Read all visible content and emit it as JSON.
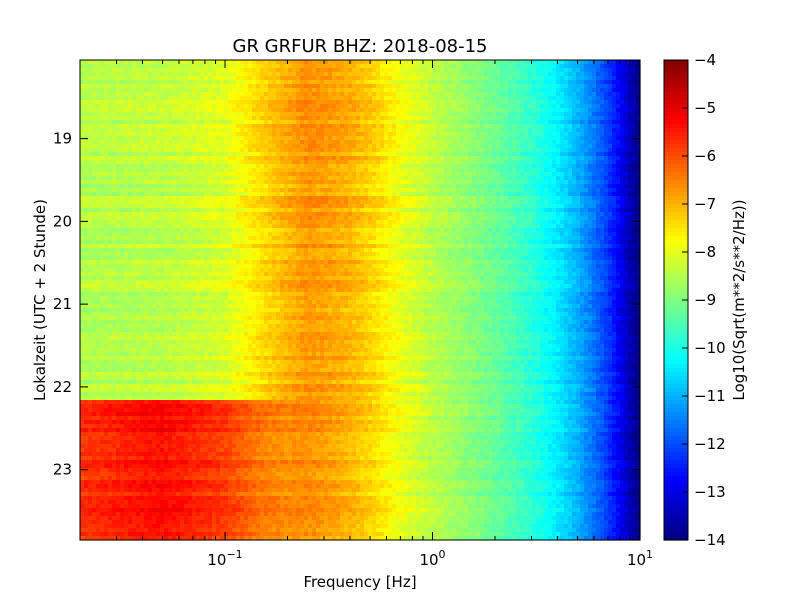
{
  "chart_data": {
    "type": "heatmap",
    "title": "GR GRFUR BHZ: 2018-08-15",
    "xlabel": "Frequency [Hz]",
    "ylabel": "Lokalzeit (UTC + 2 Stunde)",
    "colorbar_label": "Log10(Sqrt(m**2/s**2/Hz))",
    "x_scale": "log",
    "xlim": [
      0.02,
      10
    ],
    "x_ticks": [
      {
        "base": "10",
        "exp": "−1",
        "value": 0.1
      },
      {
        "base": "10",
        "exp": "0",
        "value": 1
      },
      {
        "base": "10",
        "exp": "1",
        "value": 10
      }
    ],
    "ylim": [
      18.05,
      23.85
    ],
    "y_inverted": true,
    "y_ticks": [
      {
        "label": "19",
        "value": 19
      },
      {
        "label": "20",
        "value": 20
      },
      {
        "label": "21",
        "value": 21
      },
      {
        "label": "22",
        "value": 22
      },
      {
        "label": "23",
        "value": 23
      }
    ],
    "colorscale": "jet",
    "clim": [
      -14,
      -4
    ],
    "colorbar_ticks": [
      {
        "label": "−4",
        "value": -4
      },
      {
        "label": "−5",
        "value": -5
      },
      {
        "label": "−6",
        "value": -6
      },
      {
        "label": "−7",
        "value": -7
      },
      {
        "label": "−8",
        "value": -8
      },
      {
        "label": "−9",
        "value": -9
      },
      {
        "label": "−10",
        "value": -10
      },
      {
        "label": "−11",
        "value": -11
      },
      {
        "label": "−12",
        "value": -12
      },
      {
        "label": "−13",
        "value": -13
      },
      {
        "label": "−14",
        "value": -14
      }
    ],
    "spectrum_profile": {
      "freq_hz": [
        0.02,
        0.05,
        0.1,
        0.15,
        0.2,
        0.25,
        0.3,
        0.4,
        0.5,
        0.7,
        1,
        2,
        3,
        4,
        5,
        6,
        7,
        8,
        9,
        10
      ],
      "before_22_15": [
        -8.5,
        -8.4,
        -8.1,
        -7.4,
        -7.0,
        -6.7,
        -6.8,
        -7.0,
        -7.3,
        -7.9,
        -8.4,
        -9.2,
        -9.8,
        -10.4,
        -11.0,
        -11.6,
        -12.2,
        -12.8,
        -13.5,
        -14.0
      ],
      "after_22_15": [
        -5.7,
        -5.3,
        -5.8,
        -6.4,
        -6.6,
        -6.6,
        -6.7,
        -7.0,
        -7.3,
        -7.9,
        -8.4,
        -9.2,
        -9.8,
        -10.4,
        -11.0,
        -11.6,
        -12.2,
        -12.8,
        -13.5,
        -14.0
      ]
    },
    "event_time": 22.18
  }
}
